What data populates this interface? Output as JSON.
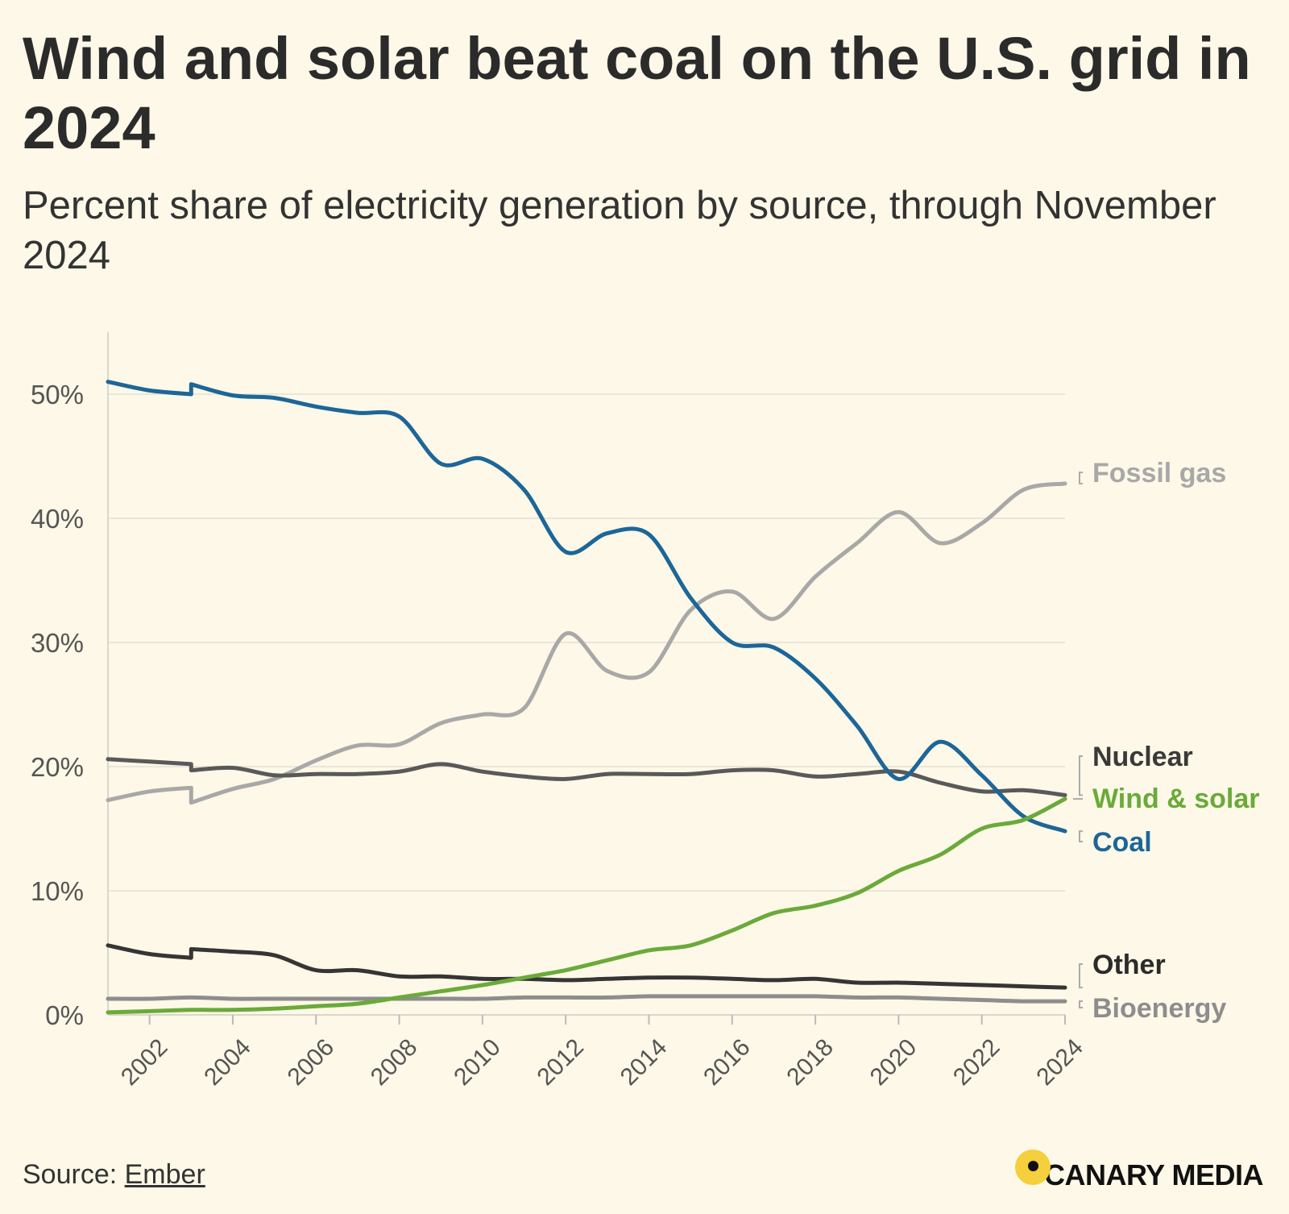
{
  "title": "Wind and solar beat coal on the U.S. grid in 2024",
  "subtitle": "Percent share of electricity generation by source, through November 2024",
  "source_prefix": "Source: ",
  "source_link": "Ember",
  "brand": "CANARY MEDIA",
  "chart_data": {
    "type": "line",
    "title": "Wind and solar beat coal on the U.S. grid in 2024",
    "subtitle": "Percent share of electricity generation by source, through November 2024",
    "xlabel": "",
    "ylabel": "",
    "xlim": [
      2001,
      2024
    ],
    "ylim": [
      0,
      55
    ],
    "yticks": [
      0,
      10,
      20,
      30,
      40,
      50
    ],
    "ytick_labels": [
      "0%",
      "10%",
      "20%",
      "30%",
      "40%",
      "50%"
    ],
    "xticks": [
      2002,
      2004,
      2006,
      2008,
      2010,
      2012,
      2014,
      2016,
      2018,
      2020,
      2022,
      2024
    ],
    "xtick_labels": [
      "2002",
      "2004",
      "2006",
      "2008",
      "2010",
      "2012",
      "2014",
      "2016",
      "2018",
      "2020",
      "2022",
      "2024"
    ],
    "grid": "horizontal",
    "legend": "direct labels at right",
    "series": [
      {
        "name": "Fossil gas",
        "color": "#a9a8a8",
        "x": [
          2001,
          2002,
          2003,
          2003,
          2004,
          2005,
          2006,
          2007,
          2008,
          2009,
          2010,
          2011,
          2012,
          2013,
          2014,
          2015,
          2016,
          2017,
          2018,
          2019,
          2020,
          2021,
          2022,
          2023,
          2024
        ],
        "y": [
          17.3,
          18.0,
          18.3,
          17.1,
          18.2,
          19.0,
          20.5,
          21.7,
          21.8,
          23.5,
          24.2,
          24.7,
          30.7,
          27.7,
          27.6,
          32.6,
          34.1,
          31.9,
          35.3,
          38.0,
          40.5,
          38.0,
          39.6,
          42.3,
          42.8
        ]
      },
      {
        "name": "Nuclear",
        "color": "#5a5959",
        "x": [
          2001,
          2002,
          2003,
          2003,
          2004,
          2005,
          2006,
          2007,
          2008,
          2009,
          2010,
          2011,
          2012,
          2013,
          2014,
          2015,
          2016,
          2017,
          2018,
          2019,
          2020,
          2021,
          2022,
          2023,
          2024
        ],
        "y": [
          20.6,
          20.4,
          20.2,
          19.7,
          19.9,
          19.3,
          19.4,
          19.4,
          19.6,
          20.2,
          19.6,
          19.2,
          19.0,
          19.4,
          19.4,
          19.4,
          19.7,
          19.7,
          19.2,
          19.4,
          19.6,
          18.7,
          18.0,
          18.1,
          17.7
        ]
      },
      {
        "name": "Wind & solar",
        "color": "#6aaa3a",
        "x": [
          2001,
          2002,
          2003,
          2004,
          2005,
          2006,
          2007,
          2008,
          2009,
          2010,
          2011,
          2012,
          2013,
          2014,
          2015,
          2016,
          2017,
          2018,
          2019,
          2020,
          2021,
          2022,
          2023,
          2024
        ],
        "y": [
          0.2,
          0.3,
          0.4,
          0.4,
          0.5,
          0.7,
          0.9,
          1.4,
          1.9,
          2.4,
          3.0,
          3.6,
          4.4,
          5.2,
          5.6,
          6.8,
          8.2,
          8.8,
          9.8,
          11.6,
          12.9,
          15.0,
          15.7,
          17.4
        ]
      },
      {
        "name": "Coal",
        "color": "#1c6698",
        "x": [
          2001,
          2002,
          2003,
          2003,
          2004,
          2005,
          2006,
          2007,
          2008,
          2009,
          2010,
          2011,
          2012,
          2013,
          2014,
          2015,
          2016,
          2017,
          2018,
          2019,
          2020,
          2021,
          2022,
          2023,
          2024
        ],
        "y": [
          51.0,
          50.3,
          50.0,
          50.8,
          49.9,
          49.7,
          49.0,
          48.5,
          48.2,
          44.4,
          44.8,
          42.3,
          37.3,
          38.8,
          38.7,
          33.6,
          30.0,
          29.6,
          27.1,
          23.3,
          19.0,
          22.0,
          19.3,
          16.0,
          14.8
        ]
      },
      {
        "name": "Other",
        "color": "#363535",
        "x": [
          2001,
          2002,
          2003,
          2003,
          2004,
          2005,
          2006,
          2007,
          2008,
          2009,
          2010,
          2011,
          2012,
          2013,
          2014,
          2015,
          2016,
          2017,
          2018,
          2019,
          2020,
          2021,
          2022,
          2023,
          2024
        ],
        "y": [
          5.6,
          4.9,
          4.6,
          5.3,
          5.1,
          4.8,
          3.6,
          3.6,
          3.1,
          3.1,
          2.9,
          2.9,
          2.8,
          2.9,
          3.0,
          3.0,
          2.9,
          2.8,
          2.9,
          2.6,
          2.6,
          2.5,
          2.4,
          2.3,
          2.2
        ]
      },
      {
        "name": "Bioenergy",
        "color": "#8e8d8d",
        "x": [
          2001,
          2002,
          2003,
          2004,
          2005,
          2006,
          2007,
          2008,
          2009,
          2010,
          2011,
          2012,
          2013,
          2014,
          2015,
          2016,
          2017,
          2018,
          2019,
          2020,
          2021,
          2022,
          2023,
          2024
        ],
        "y": [
          1.3,
          1.3,
          1.4,
          1.3,
          1.3,
          1.3,
          1.3,
          1.3,
          1.3,
          1.3,
          1.4,
          1.4,
          1.4,
          1.5,
          1.5,
          1.5,
          1.5,
          1.5,
          1.4,
          1.4,
          1.3,
          1.2,
          1.1,
          1.1
        ]
      }
    ]
  }
}
